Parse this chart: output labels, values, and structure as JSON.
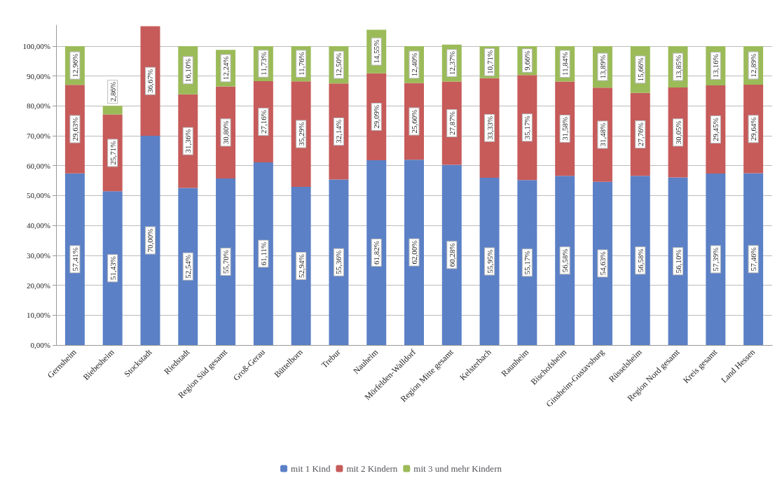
{
  "chart_data": {
    "type": "bar",
    "stacked": true,
    "grid": "y",
    "legend": "bottom",
    "categories": [
      "Gernsheim",
      "Biebesheim",
      "Stockstadt",
      "Riedstadt",
      "Region Süd gesamt",
      "Groß-Gerau",
      "Büttelborn",
      "Trebur",
      "Nauheim",
      "Mörfelden-Walldorf",
      "Region Mitte gesamt",
      "Kelsterbach",
      "Raunheim",
      "Bischofsheim",
      "Ginsheim-Gustavsburg",
      "Rüsselsheim",
      "Region Nord gesamt",
      "Kreis gesamt",
      "Land Hessen"
    ],
    "series": [
      {
        "name": "mit 1 Kind",
        "color": "#5b80c6",
        "values": [
          57.41,
          51.43,
          70.0,
          52.54,
          55.7,
          61.11,
          52.94,
          55.36,
          61.82,
          62.0,
          60.28,
          55.95,
          55.17,
          56.58,
          54.63,
          56.58,
          56.1,
          57.39,
          57.46
        ],
        "value_labels": [
          "57,41%",
          "51,43%",
          "70,00%",
          "52,54%",
          "55,70%",
          "61,11%",
          "52,94%",
          "55,36%",
          "61,82%",
          "62,00%",
          "60,28%",
          "55,95%",
          "55,17%",
          "56,58%",
          "54,63%",
          "56,58%",
          "56,10%",
          "57,39%",
          "57,46%"
        ]
      },
      {
        "name": "mit 2 Kindern",
        "color": "#c65b5a",
        "values": [
          29.63,
          25.71,
          36.67,
          31.36,
          30.8,
          27.16,
          35.29,
          32.14,
          29.09,
          25.6,
          27.87,
          33.33,
          35.17,
          31.58,
          31.48,
          27.76,
          30.05,
          29.45,
          29.64
        ],
        "value_labels": [
          "29,63%",
          "25,71%",
          "36,67%",
          "31,36%",
          "30,80%",
          "27,16%",
          "35,29%",
          "32,14%",
          "29,09%",
          "25,60%",
          "27,87%",
          "33,33%",
          "35,17%",
          "31,58%",
          "31,48%",
          "27,76%",
          "30,05%",
          "29,45%",
          "29,64%"
        ]
      },
      {
        "name": "mit 3 und mehr Kindern",
        "color": "#9bbb59",
        "values": [
          12.96,
          2.86,
          null,
          16.1,
          12.24,
          11.73,
          11.76,
          12.5,
          14.55,
          12.4,
          12.37,
          10.71,
          9.66,
          11.84,
          13.89,
          15.66,
          13.85,
          13.16,
          12.89
        ],
        "value_labels": [
          "12,96%",
          "2,86%",
          null,
          "16,10%",
          "12,24%",
          "11,73%",
          "11,76%",
          "12,50%",
          "14,55%",
          "12,40%",
          "12,37%",
          "10,71%",
          "9,66%",
          "11,84%",
          "13,89%",
          "15,66%",
          "13,85%",
          "13,16%",
          "12,89%"
        ]
      }
    ],
    "ylim": [
      0,
      107
    ],
    "yticks": [
      {
        "value": 0,
        "label": "0,00%"
      },
      {
        "value": 10,
        "label": "10,00%"
      },
      {
        "value": 20,
        "label": "20,00%"
      },
      {
        "value": 30,
        "label": "30,00%"
      },
      {
        "value": 40,
        "label": "40,00%"
      },
      {
        "value": 50,
        "label": "50,00%"
      },
      {
        "value": 60,
        "label": "60,00%"
      },
      {
        "value": 70,
        "label": "70,00%"
      },
      {
        "value": 80,
        "label": "80,00%"
      },
      {
        "value": 90,
        "label": "90,00%"
      },
      {
        "value": 100,
        "label": "100,00%"
      }
    ]
  }
}
